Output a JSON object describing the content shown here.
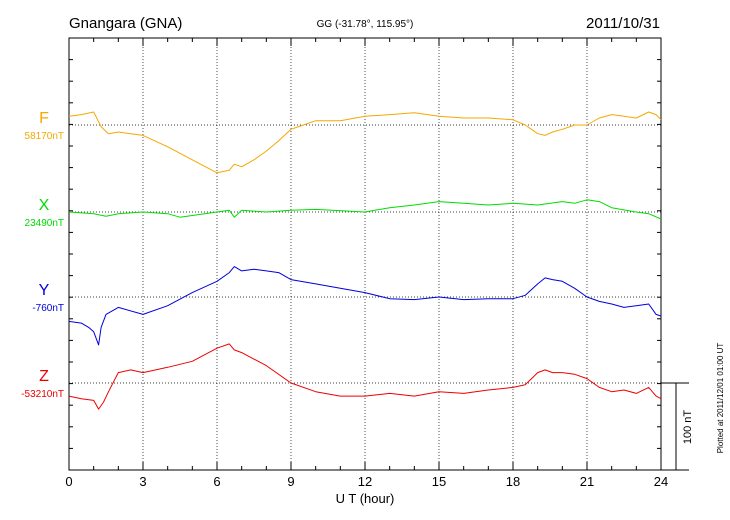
{
  "chart_data": {
    "type": "line",
    "title": "Gnangara (GNA)",
    "subtitle": "GG (-31.78°, 115.95°)",
    "date": "2011/10/31",
    "xlabel": "U T (hour)",
    "xlim": [
      0,
      24
    ],
    "x_ticks": [
      "0",
      "3",
      "6",
      "9",
      "12",
      "15",
      "18",
      "21",
      "24"
    ],
    "grid": true,
    "scale_bar_label": "100 nT",
    "footer": "Plotted at 2011/12/01 01:00 UT",
    "series": [
      {
        "name": "F",
        "baseline_label": "58170nT",
        "color": "#f5a800",
        "x": [
          0,
          0.5,
          1.0,
          1.3,
          1.6,
          2.0,
          2.5,
          3.0,
          4.0,
          5.0,
          6.0,
          6.5,
          6.7,
          7.0,
          7.5,
          8.0,
          8.5,
          9.0,
          9.5,
          10.0,
          11.0,
          12.0,
          13.0,
          14.0,
          15.0,
          16.0,
          17.0,
          18.0,
          18.5,
          19.0,
          19.3,
          19.6,
          20.0,
          20.5,
          21.0,
          21.5,
          22.0,
          22.5,
          23.0,
          23.5,
          23.8,
          24.0
        ],
        "y": [
          10,
          12,
          15,
          -2,
          -10,
          -8,
          -10,
          -12,
          -25,
          -40,
          -55,
          -52,
          -45,
          -48,
          -40,
          -30,
          -18,
          -5,
          0,
          5,
          5,
          10,
          12,
          14,
          10,
          8,
          8,
          6,
          0,
          -10,
          -12,
          -8,
          -5,
          0,
          0,
          8,
          12,
          10,
          8,
          15,
          12,
          6
        ]
      },
      {
        "name": "X",
        "baseline_label": "23490nT",
        "color": "#00dd00",
        "x": [
          0,
          1.0,
          1.5,
          2.0,
          3.0,
          4.0,
          4.5,
          5.0,
          6.0,
          6.5,
          6.7,
          7.0,
          8.0,
          9.0,
          10.0,
          12.0,
          13.0,
          14.0,
          15.0,
          16.0,
          17.0,
          18.0,
          19.0,
          20.0,
          20.5,
          21.0,
          21.5,
          22.0,
          23.0,
          23.5,
          24.0
        ],
        "y": [
          0,
          -2,
          -5,
          -2,
          0,
          -2,
          -6,
          -4,
          0,
          2,
          -6,
          2,
          0,
          2,
          3,
          0,
          5,
          8,
          12,
          10,
          8,
          10,
          8,
          12,
          10,
          14,
          12,
          5,
          0,
          -2,
          -8
        ]
      },
      {
        "name": "Y",
        "baseline_label": "-760nT",
        "color": "#0000dd",
        "x": [
          0,
          0.5,
          0.8,
          1.0,
          1.2,
          1.3,
          1.5,
          2.0,
          3.0,
          4.0,
          5.0,
          6.0,
          6.5,
          6.7,
          7.0,
          7.5,
          8.0,
          8.5,
          9.0,
          10.0,
          11.0,
          12.0,
          13.0,
          14.0,
          15.0,
          16.0,
          17.0,
          18.0,
          18.5,
          19.0,
          19.3,
          19.6,
          20.0,
          20.5,
          21.0,
          21.5,
          22.0,
          22.5,
          23.0,
          23.5,
          23.8,
          24.0
        ],
        "y": [
          -28,
          -30,
          -35,
          -40,
          -55,
          -35,
          -20,
          -12,
          -20,
          -10,
          5,
          18,
          28,
          35,
          30,
          32,
          30,
          28,
          20,
          15,
          10,
          5,
          -2,
          -3,
          0,
          -3,
          -2,
          -2,
          2,
          15,
          22,
          20,
          18,
          10,
          0,
          -5,
          -8,
          -12,
          -10,
          -8,
          -20,
          -22
        ]
      },
      {
        "name": "Z",
        "baseline_label": "-53210nT",
        "color": "#ee0000",
        "x": [
          0,
          0.5,
          1.0,
          1.2,
          1.4,
          1.6,
          2.0,
          2.5,
          3.0,
          4.0,
          5.0,
          6.0,
          6.5,
          6.7,
          7.0,
          8.0,
          9.0,
          10.0,
          11.0,
          12.0,
          13.0,
          14.0,
          15.0,
          16.0,
          17.0,
          18.0,
          18.5,
          19.0,
          19.3,
          19.6,
          20.0,
          20.5,
          21.0,
          21.5,
          22.0,
          22.5,
          23.0,
          23.5,
          23.8,
          24.0
        ],
        "y": [
          -15,
          -18,
          -20,
          -30,
          -22,
          -10,
          12,
          15,
          12,
          18,
          25,
          40,
          45,
          38,
          35,
          20,
          0,
          -10,
          -15,
          -15,
          -12,
          -15,
          -10,
          -12,
          -8,
          -5,
          -2,
          12,
          15,
          12,
          12,
          10,
          5,
          -5,
          -10,
          -8,
          -12,
          -5,
          -15,
          -18
        ]
      }
    ]
  }
}
